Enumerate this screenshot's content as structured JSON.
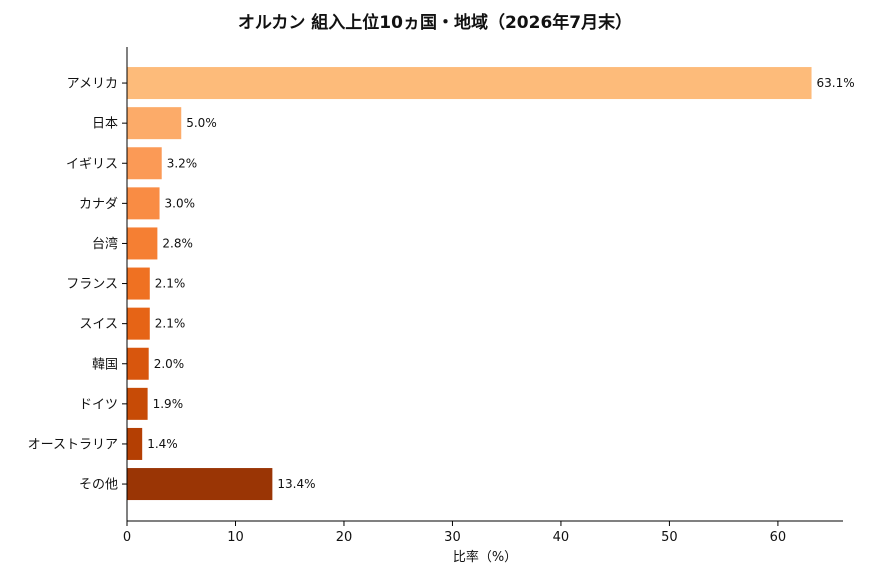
{
  "chart_data": {
    "type": "bar",
    "orientation": "horizontal",
    "title": "オルカン 組入上位10ヵ国・地域（2026年7月末）",
    "xlabel": "比率（%）",
    "ylabel": "",
    "xlim": [
      0,
      66
    ],
    "xticks": [
      0,
      10,
      20,
      30,
      40,
      50,
      60
    ],
    "grid": false,
    "categories": [
      "アメリカ",
      "日本",
      "イギリス",
      "カナダ",
      "台湾",
      "フランス",
      "スイス",
      "韓国",
      "ドイツ",
      "オーストラリア",
      "その他"
    ],
    "values": [
      63.1,
      5.0,
      3.2,
      3.0,
      2.8,
      2.1,
      2.1,
      2.0,
      1.9,
      1.4,
      13.4
    ],
    "value_labels": [
      "63.1%",
      "5.0%",
      "3.2%",
      "3.0%",
      "2.8%",
      "2.1%",
      "2.1%",
      "2.0%",
      "1.9%",
      "1.4%",
      "13.4%"
    ],
    "colors": [
      "#fdbb7a",
      "#fcab69",
      "#fb9a56",
      "#f98c44",
      "#f57f33",
      "#ef7122",
      "#e66416",
      "#d8560d",
      "#c74b06",
      "#b43f03",
      "#9a3505"
    ]
  }
}
